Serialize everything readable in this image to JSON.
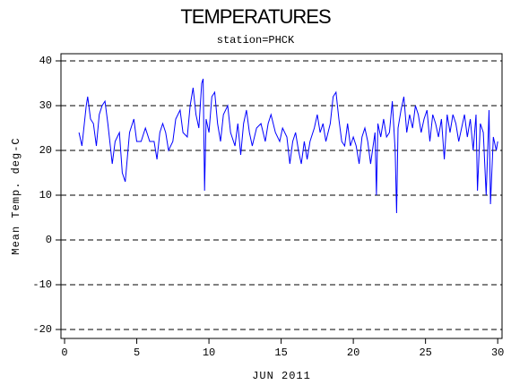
{
  "chart_data": {
    "type": "line",
    "title": "TEMPERATURES",
    "subtitle": "station=PHCK",
    "x_label": "JUN 2011",
    "y_label": "Mean Temp. deg-C",
    "color": "#0000ff",
    "grid": true,
    "grid_style": "dashed",
    "xlim": [
      -0.25,
      30.3
    ],
    "xticks": [
      0,
      5,
      10,
      15,
      20,
      25,
      30
    ],
    "ylim": [
      -22,
      41.6
    ],
    "yticks": [
      -20,
      -10,
      0,
      10,
      20,
      30,
      40
    ],
    "x": [
      1.0,
      1.2,
      1.5,
      1.6,
      1.8,
      2.0,
      2.2,
      2.4,
      2.6,
      2.8,
      3.0,
      3.2,
      3.3,
      3.5,
      3.8,
      4.0,
      4.2,
      4.5,
      4.8,
      5.0,
      5.3,
      5.6,
      5.9,
      6.2,
      6.4,
      6.6,
      6.8,
      7.0,
      7.2,
      7.5,
      7.7,
      8.0,
      8.2,
      8.5,
      8.7,
      8.9,
      9.1,
      9.3,
      9.5,
      9.6,
      9.7,
      9.8,
      10.0,
      10.2,
      10.4,
      10.6,
      10.8,
      11.0,
      11.3,
      11.5,
      11.8,
      12.0,
      12.2,
      12.4,
      12.6,
      12.8,
      13.0,
      13.3,
      13.6,
      13.9,
      14.1,
      14.3,
      14.6,
      14.9,
      15.1,
      15.4,
      15.6,
      15.8,
      16.0,
      16.2,
      16.4,
      16.6,
      16.8,
      17.0,
      17.3,
      17.5,
      17.7,
      17.9,
      18.1,
      18.4,
      18.6,
      18.8,
      19.0,
      19.2,
      19.4,
      19.6,
      19.8,
      20.0,
      20.2,
      20.4,
      20.6,
      20.8,
      21.0,
      21.2,
      21.5,
      21.6,
      21.7,
      21.9,
      22.1,
      22.3,
      22.5,
      22.7,
      22.9,
      23.0,
      23.1,
      23.3,
      23.5,
      23.7,
      23.9,
      24.1,
      24.3,
      24.5,
      24.7,
      24.9,
      25.1,
      25.3,
      25.5,
      25.7,
      25.9,
      26.1,
      26.3,
      26.5,
      26.7,
      26.9,
      27.1,
      27.3,
      27.5,
      27.7,
      27.9,
      28.1,
      28.3,
      28.5,
      28.6,
      28.8,
      29.0,
      29.2,
      29.4,
      29.5,
      29.7,
      29.9,
      30.0
    ],
    "values": [
      24,
      21,
      30,
      32,
      27,
      26,
      21,
      28,
      30,
      31,
      26,
      20,
      17,
      22,
      24,
      15,
      13,
      24,
      27,
      22,
      22,
      25,
      22,
      22,
      18,
      24,
      26,
      24,
      20,
      22,
      27,
      29,
      24,
      23,
      30,
      34,
      28,
      25,
      35,
      36,
      11,
      27,
      24,
      32,
      33,
      26,
      22,
      28,
      30,
      24,
      21,
      26,
      19,
      26,
      29,
      24,
      21,
      25,
      26,
      22,
      26,
      28,
      24,
      22,
      25,
      23,
      17,
      22,
      24,
      20,
      17,
      22,
      18,
      22,
      25,
      28,
      24,
      26,
      22,
      26,
      32,
      33,
      27,
      22,
      21,
      26,
      21,
      23,
      21,
      17,
      23,
      25,
      22,
      17,
      24,
      10,
      26,
      23,
      27,
      23,
      24,
      31,
      20,
      6,
      25,
      29,
      32,
      24,
      28,
      25,
      30,
      28,
      24,
      27,
      29,
      22,
      28,
      26,
      23,
      27,
      18,
      28,
      24,
      28,
      26,
      22,
      25,
      28,
      23,
      27,
      20,
      28,
      11,
      26,
      24,
      10,
      29,
      8,
      23,
      20,
      22
    ]
  }
}
